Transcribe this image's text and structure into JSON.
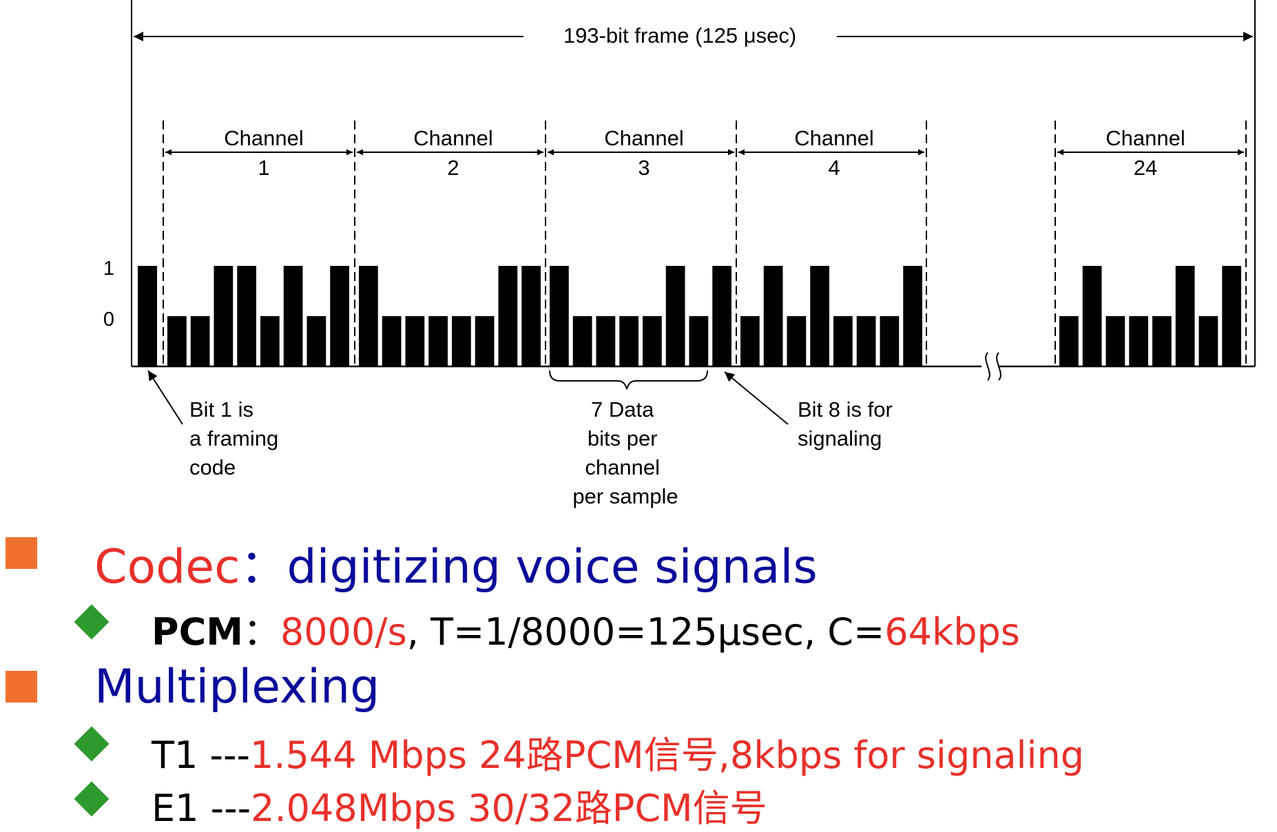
{
  "frame_label": "193-bit frame  (125 μsec)",
  "level_one": "1",
  "level_zero": "0",
  "channels": [
    {
      "word": "Channel",
      "num": "1"
    },
    {
      "word": "Channel",
      "num": "2"
    },
    {
      "word": "Channel",
      "num": "3"
    },
    {
      "word": "Channel",
      "num": "4"
    },
    {
      "word": "Channel",
      "num": "24"
    }
  ],
  "framing_bit": 1,
  "channel_bits": [
    [
      0,
      0,
      1,
      1,
      0,
      1,
      0,
      1
    ],
    [
      1,
      0,
      0,
      0,
      0,
      0,
      1,
      1
    ],
    [
      1,
      0,
      0,
      0,
      0,
      1,
      0,
      1
    ],
    [
      0,
      1,
      0,
      1,
      0,
      0,
      0,
      1
    ],
    [
      0,
      1,
      0,
      0,
      0,
      1,
      0,
      1
    ]
  ],
  "note_framing": [
    "Bit 1 is",
    "a framing",
    "code"
  ],
  "note_data": [
    "7 Data",
    "bits per",
    "channel",
    "per sample"
  ],
  "note_signaling": [
    "Bit 8 is for",
    "signaling"
  ],
  "colors": {
    "accent_red": "#e8302a",
    "heading_blue": "#0a0a9a",
    "square_bullet": "#f07030",
    "diamond_bullet": "#2e9a2e"
  },
  "bullets": {
    "b1_red": "Codec",
    "b1_sep": "：",
    "b1_blue": "digitizing voice signals",
    "b1a_bold": "PCM",
    "b1a_sep": "：",
    "b1a_red1": "8000/s",
    "b1a_mid": ", T=1/8000=125μsec, C=",
    "b1a_red2": "64kbps",
    "b2_blue": "Multiplexing",
    "b2a_black": "T1 ---",
    "b2a_red": "1.544 Mbps 24路PCM信号,8kbps for signaling",
    "b2b_black": "E1 ---",
    "b2b_red": "2.048Mbps 30/32路PCM信号"
  }
}
